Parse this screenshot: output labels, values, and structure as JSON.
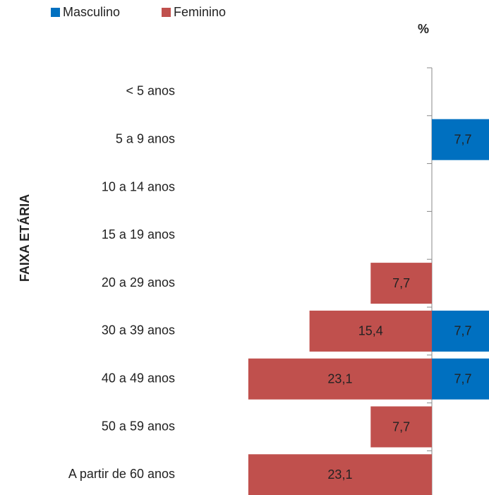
{
  "chart_data": {
    "type": "pyramid",
    "title": "%",
    "y_label": "FAIXA ETÁRIA",
    "categories": [
      "< 5 anos",
      "5 a 9 anos",
      "10 a 14 anos",
      "15 a 19 anos",
      "20 a 29 anos",
      "30 a 39 anos",
      "40 a 49 anos",
      "50 a 59 anos",
      "A partir de 60 anos"
    ],
    "series": [
      {
        "name": "Masculino",
        "color": "#0070c0",
        "values": [
          null,
          7.7,
          null,
          null,
          null,
          7.7,
          7.7,
          null,
          null
        ],
        "value_labels": [
          null,
          "7,7",
          null,
          null,
          null,
          "7,7",
          "7,7",
          null,
          null
        ]
      },
      {
        "name": "Feminino",
        "color": "#c0504d",
        "values": [
          null,
          null,
          null,
          null,
          7.7,
          15.4,
          23.1,
          7.7,
          23.1
        ],
        "value_labels": [
          null,
          null,
          null,
          null,
          "7,7",
          "15,4",
          "23,1",
          "7,7",
          "23,1"
        ]
      }
    ],
    "xlim": [
      0,
      25
    ]
  }
}
